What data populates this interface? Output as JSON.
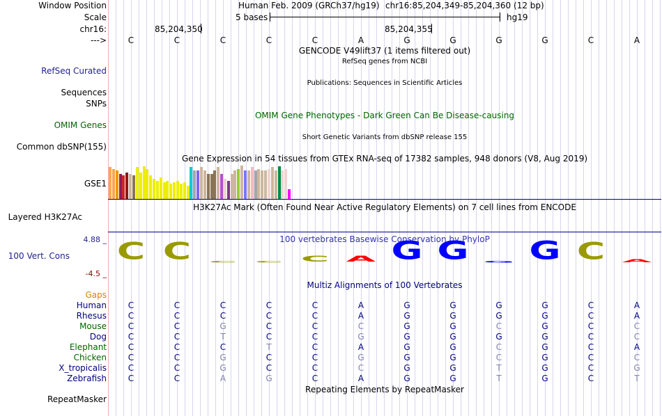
{
  "labels": {
    "window_position": "Window Position",
    "scale": "Scale",
    "chrom": "chr16:",
    "arrow": "--->",
    "refseq": "RefSeq Curated",
    "sequences": "Sequences",
    "snps": "SNPs",
    "omim_genes": "OMIM Genes",
    "common_dbsnp": "Common dbSNP(155)",
    "gse1": "GSE1",
    "layered": "Layered H3K27Ac",
    "cons_top": "4.88 _",
    "cons_name": "100 Vert. Cons",
    "cons_bottom": "-4.5 _",
    "gaps": "Gaps",
    "repeatmasker": "RepeatMasker"
  },
  "header": {
    "assembly": "Human Feb. 2009 (GRCh37/hg19)",
    "position": "chr16:85,204,349-85,204,360 (12 bp)",
    "scale_text": "5 bases",
    "scale_db": "hg19",
    "coord1": "85,204,350",
    "coord2": "85,204,355"
  },
  "tracks": {
    "gencode": "GENCODE V49lift37 (1 items filtered out)",
    "refseq": "RefSeq genes from NCBI",
    "publications": "Publications: Sequences in Scientific Articles",
    "omim": "OMIM Gene Phenotypes - Dark Green Can Be Disease-causing",
    "dbsnp": "Short Genetic Variants from dbSNP release 155",
    "gtex": "Gene Expression in 54 tissues from GTEx RNA-seq of 17382 samples, 948 donors (V8, Aug 2019)",
    "h3k27ac": "H3K27Ac Mark (Often Found Near Active Regulatory Elements) on 7 cell lines from ENCODE",
    "phylop": "100 vertebrates Basewise Conservation by PhyloP",
    "multiz": "Multiz Alignments of 100 Vertebrates",
    "repeat": "Repeating Elements by RepeatMasker"
  },
  "bases": [
    "C",
    "C",
    "C",
    "C",
    "C",
    "A",
    "G",
    "G",
    "G",
    "G",
    "C",
    "A"
  ],
  "species": [
    {
      "name": "Human",
      "color": "#000080",
      "seq": [
        "C",
        "C",
        "C",
        "C",
        "C",
        "A",
        "G",
        "G",
        "G",
        "G",
        "C",
        "A"
      ],
      "match": [
        1,
        1,
        1,
        1,
        1,
        1,
        1,
        1,
        1,
        1,
        1,
        1
      ]
    },
    {
      "name": "Rhesus",
      "color": "#000080",
      "seq": [
        "C",
        "C",
        "C",
        "C",
        "C",
        "A",
        "G",
        "G",
        "G",
        "G",
        "C",
        "A"
      ],
      "match": [
        1,
        1,
        1,
        1,
        1,
        1,
        1,
        1,
        1,
        1,
        1,
        1
      ]
    },
    {
      "name": "Mouse",
      "color": "#006400",
      "seq": [
        "C",
        "C",
        "G",
        "C",
        "C",
        "C",
        "G",
        "G",
        "C",
        "G",
        "C",
        "C"
      ],
      "match": [
        1,
        1,
        0,
        1,
        1,
        0,
        1,
        1,
        0,
        1,
        1,
        0
      ]
    },
    {
      "name": "Dog",
      "color": "#000080",
      "seq": [
        "C",
        "C",
        "T",
        "C",
        "C",
        "G",
        "G",
        "G",
        "G",
        "G",
        "C",
        "C"
      ],
      "match": [
        1,
        1,
        0,
        1,
        1,
        0,
        1,
        1,
        1,
        1,
        1,
        0
      ]
    },
    {
      "name": "Elephant",
      "color": "#006400",
      "seq": [
        "C",
        "C",
        "C",
        "T",
        "C",
        "A",
        "G",
        "G",
        "C",
        "G",
        "C",
        "A"
      ],
      "match": [
        1,
        1,
        1,
        0,
        1,
        1,
        1,
        1,
        0,
        1,
        1,
        1
      ]
    },
    {
      "name": "Chicken",
      "color": "#006400",
      "seq": [
        "C",
        "C",
        "G",
        "C",
        "C",
        "G",
        "G",
        "G",
        "C",
        "G",
        "C",
        "C"
      ],
      "match": [
        1,
        1,
        0,
        1,
        1,
        0,
        1,
        1,
        0,
        1,
        1,
        0
      ]
    },
    {
      "name": "X_tropicalis",
      "color": "#000080",
      "seq": [
        "C",
        "C",
        "G",
        "C",
        "C",
        "C",
        "G",
        "G",
        "T",
        "G",
        "C",
        "G"
      ],
      "match": [
        1,
        1,
        0,
        1,
        1,
        0,
        1,
        1,
        0,
        1,
        1,
        0
      ]
    },
    {
      "name": "Zebrafish",
      "color": "#000080",
      "seq": [
        "C",
        "C",
        "A",
        "G",
        "C",
        "A",
        "G",
        "G",
        "T",
        "G",
        "C",
        "T"
      ],
      "match": [
        1,
        1,
        0,
        0,
        1,
        1,
        1,
        1,
        0,
        1,
        1,
        0
      ]
    }
  ],
  "gtex_colors": [
    "#FFA54F",
    "#FFA54F",
    "#EE9A00",
    "#8B1C62",
    "#CD2626",
    "#8B1A1A",
    "#CDB79E",
    "#8B7355",
    "#EEEE00",
    "#EEEE00",
    "#EEEE00",
    "#EEEE00",
    "#EEEE00",
    "#EEEE00",
    "#EEEE00",
    "#EEEE00",
    "#EEEE00",
    "#EEEE00",
    "#EEEE00",
    "#EEEE00",
    "#EEEE00",
    "#EEEE00",
    "#EEEE00",
    "#EEEE00",
    "#00CED1",
    "#A6A6A6",
    "#7A67EE",
    "#CDB79E",
    "#CDB79E",
    "#8B7355",
    "#8B7355",
    "#8B7355",
    "#CDB79E",
    "#B452CD",
    "#EED5D2",
    "#7A378B",
    "#CDB79E",
    "#CDB79E",
    "#9ACD32",
    "#CDB79E",
    "#7777FF",
    "#CDB79E",
    "#FFB6C1",
    "#A6A6A6",
    "#CDB79E",
    "#CDB79E",
    "#CDB79E",
    "#EED5D2",
    "#CDB79E",
    "#CDB79E",
    "#008B45",
    "#EED5D2",
    "#EED5D2",
    "#FF00FF"
  ],
  "gtex_levels": [
    0.95,
    0.9,
    0.85,
    0.75,
    0.7,
    0.8,
    0.75,
    0.7,
    0.95,
    0.8,
    0.98,
    0.9,
    0.7,
    0.6,
    0.55,
    0.65,
    0.5,
    0.55,
    0.45,
    0.5,
    0.55,
    0.45,
    0.5,
    0.4,
    0.95,
    0.85,
    0.85,
    0.95,
    0.85,
    0.75,
    0.75,
    0.85,
    0.95,
    0.75,
    0.6,
    0.55,
    0.75,
    0.85,
    0.9,
    1.0,
    0.85,
    0.85,
    0.95,
    0.85,
    0.9,
    0.85,
    0.85,
    0.9,
    0.95,
    0.85,
    0.98,
    0.85,
    0.9,
    0.3
  ],
  "conservation_logo": [
    {
      "base": "C",
      "color": "#9A9A00",
      "level": 0.9
    },
    {
      "base": "C",
      "color": "#9A9A00",
      "level": 0.9
    },
    {
      "base": "C",
      "color": "#9A9A00",
      "level": 0.1
    },
    {
      "base": "C",
      "color": "#9A9A00",
      "level": 0.1
    },
    {
      "base": "C",
      "color": "#9A9A00",
      "level": 0.3
    },
    {
      "base": "A",
      "color": "#FF0000",
      "level": 0.3
    },
    {
      "base": "G",
      "color": "#0000FF",
      "level": 0.95
    },
    {
      "base": "G",
      "color": "#0000FF",
      "level": 0.95
    },
    {
      "base": "G",
      "color": "#0000FF",
      "level": 0.0
    },
    {
      "base": "G",
      "color": "#0000FF",
      "level": 0.95
    },
    {
      "base": "C",
      "color": "#9A9A00",
      "level": 0.9
    },
    {
      "base": "A",
      "color": "#FF0000",
      "level": 0.15
    }
  ],
  "colors": {
    "label_blue": "#1f1f8f",
    "omim_green": "#006400",
    "gaps_orange": "#E08000",
    "phylop_blue": "#3333AA",
    "dark_red": "#8B0000",
    "grid": "#d6d6f0"
  }
}
